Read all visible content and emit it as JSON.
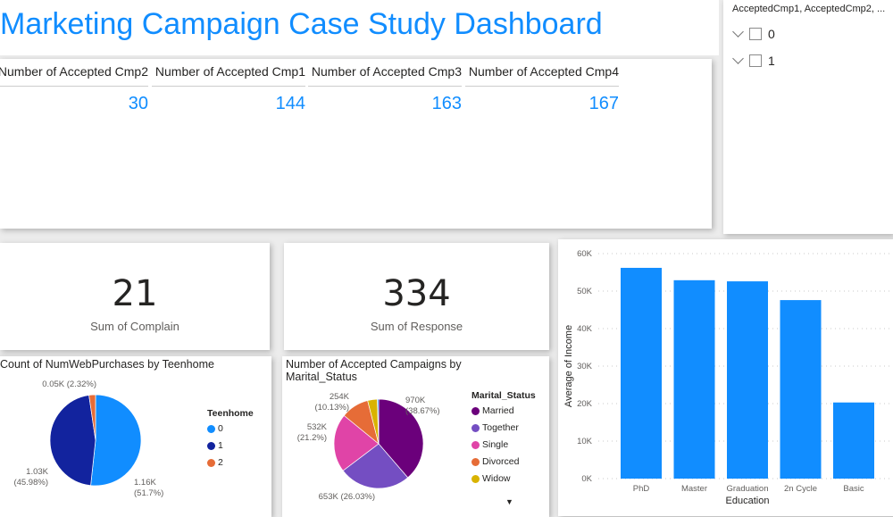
{
  "title": "Marketing Campaign Case Study Dashboard",
  "kpi": [
    {
      "label": "Number of Accepted Cmp2",
      "value": "30"
    },
    {
      "label": "Number of Accepted Cmp1",
      "value": "144"
    },
    {
      "label": "Number of Accepted Cmp3",
      "value": "163"
    },
    {
      "label": "Number of Accepted Cmp4",
      "value": "167"
    }
  ],
  "slicer": {
    "header": "AcceptedCmp1, AcceptedCmp2, ...",
    "items": [
      {
        "label": "0",
        "checked": false
      },
      {
        "label": "1",
        "checked": false
      }
    ]
  },
  "complain": {
    "value": "21",
    "label": "Sum of Complain"
  },
  "response": {
    "value": "334",
    "label": "Sum of Response"
  },
  "chart_data": [
    {
      "type": "pie",
      "title": "Count of NumWebPurchases by Teenhome",
      "legend_title": "Teenhome",
      "legend": "right",
      "slices": [
        {
          "name": "0",
          "value": 1.16,
          "percent": 51.7,
          "label": [
            "1.16K",
            "(51.7%)"
          ],
          "color": "#118DFF"
        },
        {
          "name": "1",
          "value": 1.03,
          "percent": 45.98,
          "label": [
            "1.03K",
            "(45.98%)"
          ],
          "color": "#12239E"
        },
        {
          "name": "2",
          "value": 0.05,
          "percent": 2.32,
          "label": [
            "0.05K (2.32%)"
          ],
          "color": "#E66C37"
        }
      ]
    },
    {
      "type": "pie",
      "title": "Number of Accepted Campaigns by Marital_Status",
      "legend_title": "Marital_Status",
      "legend": "right",
      "slices": [
        {
          "name": "Married",
          "percent": 38.67,
          "label": [
            "970K",
            "(38.67%)"
          ],
          "color": "#6B007B"
        },
        {
          "name": "Together",
          "percent": 26.03,
          "label": [
            "653K (26.03%)"
          ],
          "color": "#744EC2"
        },
        {
          "name": "Single",
          "percent": 21.2,
          "label": [
            "532K",
            "(21.2%)"
          ],
          "color": "#E044A7"
        },
        {
          "name": "Divorced",
          "percent": 10.13,
          "label": [
            "254K",
            "(10.13%)"
          ],
          "color": "#E66C37"
        },
        {
          "name": "Widow",
          "percent": 3.5,
          "label": [],
          "color": "#D9B300"
        },
        {
          "name": "",
          "percent": 0.47,
          "label": [],
          "color": "#118DFF"
        }
      ]
    },
    {
      "type": "bar",
      "xlabel": "Education",
      "ylabel": "Average of Income",
      "ylim": [
        0,
        60000
      ],
      "grid": true,
      "yticks": [
        "0K",
        "10K",
        "20K",
        "30K",
        "40K",
        "50K",
        "60K"
      ],
      "categories": [
        "PhD",
        "Master",
        "Graduation",
        "2n Cycle",
        "Basic"
      ],
      "values": [
        56200,
        52900,
        52600,
        47600,
        20300
      ],
      "color": "#118DFF"
    }
  ]
}
